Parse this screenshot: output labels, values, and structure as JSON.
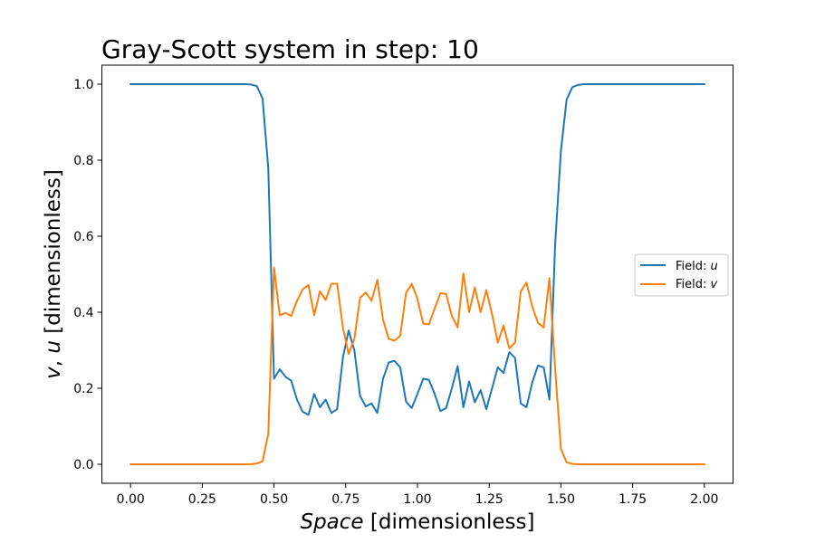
{
  "chart_data": {
    "type": "line",
    "title": "Gray-Scott system in step: 10",
    "xlabel": {
      "italic": "Space",
      "rest": " [dimensionless]"
    },
    "ylabel": {
      "italic_v": "v",
      "sep": ", ",
      "italic_u": "u",
      "rest": " [dimensionless]"
    },
    "xlim": [
      -0.1,
      2.1
    ],
    "ylim": [
      -0.05,
      1.05
    ],
    "xticks": [
      0.0,
      0.25,
      0.5,
      0.75,
      1.0,
      1.25,
      1.5,
      1.75,
      2.0
    ],
    "xtick_labels": [
      "0.00",
      "0.25",
      "0.50",
      "0.75",
      "1.00",
      "1.25",
      "1.50",
      "1.75",
      "2.00"
    ],
    "yticks": [
      0.0,
      0.2,
      0.4,
      0.6,
      0.8,
      1.0
    ],
    "ytick_labels": [
      "0.0",
      "0.2",
      "0.4",
      "0.6",
      "0.8",
      "1.0"
    ],
    "grid": false,
    "legend_position": "center-right",
    "x_start": 0.0,
    "x_step": 0.02,
    "series": [
      {
        "name": "Field: u",
        "legend_prefix": "Field: ",
        "legend_var": "u",
        "color": "#1f77b4",
        "values": [
          1.0,
          1.0,
          1.0,
          1.0,
          1.0,
          1.0,
          1.0,
          1.0,
          1.0,
          1.0,
          1.0,
          1.0,
          1.0,
          1.0,
          1.0,
          1.0,
          1.0,
          1.0,
          1.0,
          1.0,
          1.0,
          0.999,
          0.995,
          0.962,
          0.78,
          0.225,
          0.25,
          0.23,
          0.22,
          0.17,
          0.138,
          0.13,
          0.185,
          0.15,
          0.17,
          0.135,
          0.145,
          0.28,
          0.352,
          0.3,
          0.18,
          0.152,
          0.16,
          0.135,
          0.225,
          0.268,
          0.272,
          0.255,
          0.165,
          0.148,
          0.185,
          0.225,
          0.222,
          0.185,
          0.14,
          0.148,
          0.2,
          0.258,
          0.15,
          0.218,
          0.163,
          0.195,
          0.145,
          0.2,
          0.255,
          0.24,
          0.295,
          0.28,
          0.16,
          0.15,
          0.215,
          0.26,
          0.255,
          0.17,
          0.58,
          0.825,
          0.96,
          0.992,
          0.998,
          1.0,
          1.0,
          1.0,
          1.0,
          1.0,
          1.0,
          1.0,
          1.0,
          1.0,
          1.0,
          1.0,
          1.0,
          1.0,
          1.0,
          1.0,
          1.0,
          1.0,
          1.0,
          1.0,
          1.0,
          1.0,
          1.0
        ]
      },
      {
        "name": "Field: v",
        "legend_prefix": "Field: ",
        "legend_var": "v",
        "color": "#ff7f0e",
        "values": [
          0.0,
          0.0,
          0.0,
          0.0,
          0.0,
          0.0,
          0.0,
          0.0,
          0.0,
          0.0,
          0.0,
          0.0,
          0.0,
          0.0,
          0.0,
          0.0,
          0.0,
          0.0,
          0.0,
          0.0,
          0.0,
          0.0,
          0.002,
          0.008,
          0.08,
          0.518,
          0.392,
          0.398,
          0.39,
          0.43,
          0.46,
          0.472,
          0.392,
          0.455,
          0.432,
          0.475,
          0.475,
          0.36,
          0.29,
          0.33,
          0.438,
          0.452,
          0.43,
          0.485,
          0.38,
          0.33,
          0.325,
          0.338,
          0.45,
          0.475,
          0.435,
          0.37,
          0.368,
          0.41,
          0.45,
          0.448,
          0.39,
          0.36,
          0.502,
          0.4,
          0.465,
          0.4,
          0.458,
          0.395,
          0.32,
          0.365,
          0.305,
          0.32,
          0.455,
          0.478,
          0.415,
          0.372,
          0.36,
          0.49,
          0.25,
          0.04,
          0.005,
          0.001,
          0.0,
          0.0,
          0.0,
          0.0,
          0.0,
          0.0,
          0.0,
          0.0,
          0.0,
          0.0,
          0.0,
          0.0,
          0.0,
          0.0,
          0.0,
          0.0,
          0.0,
          0.0,
          0.0,
          0.0,
          0.0,
          0.0,
          0.0
        ]
      }
    ]
  }
}
